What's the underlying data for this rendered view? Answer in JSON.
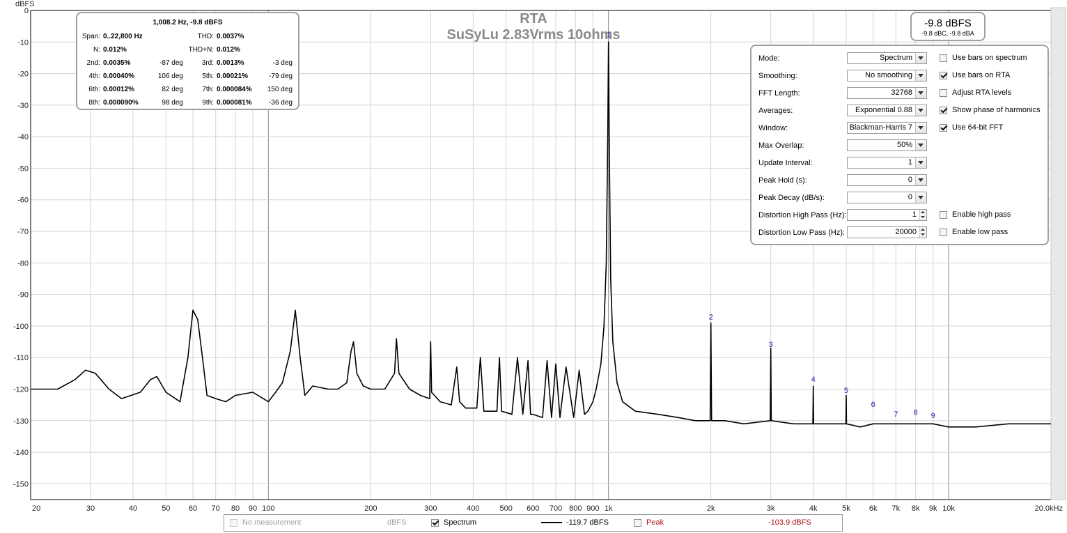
{
  "chart_data": {
    "type": "line",
    "title": "RTA",
    "subtitle": "SuSyLu 2.83Vrms 10ohms",
    "ylabel": "dBFS",
    "xlabel": "",
    "x_scale": "log",
    "xlim": [
      20,
      20000
    ],
    "ylim": [
      -155,
      0
    ],
    "y_ticks": [
      0,
      -10,
      -20,
      -30,
      -40,
      -50,
      -60,
      -70,
      -80,
      -90,
      -100,
      -110,
      -120,
      -130,
      -140,
      -150
    ],
    "x_tick_labels": [
      {
        "v": 20,
        "t": "20"
      },
      {
        "v": 30,
        "t": "30"
      },
      {
        "v": 40,
        "t": "40"
      },
      {
        "v": 50,
        "t": "50"
      },
      {
        "v": 60,
        "t": "60"
      },
      {
        "v": 70,
        "t": "70"
      },
      {
        "v": 80,
        "t": "80"
      },
      {
        "v": 90,
        "t": "90"
      },
      {
        "v": 100,
        "t": "100"
      },
      {
        "v": 200,
        "t": "200"
      },
      {
        "v": 300,
        "t": "300"
      },
      {
        "v": 400,
        "t": "400"
      },
      {
        "v": 500,
        "t": "500"
      },
      {
        "v": 600,
        "t": "600"
      },
      {
        "v": 700,
        "t": "700"
      },
      {
        "v": 800,
        "t": "800"
      },
      {
        "v": 900,
        "t": "900"
      },
      {
        "v": 1000,
        "t": "1k"
      },
      {
        "v": 2000,
        "t": "2k"
      },
      {
        "v": 3000,
        "t": "3k"
      },
      {
        "v": 4000,
        "t": "4k"
      },
      {
        "v": 5000,
        "t": "5k"
      },
      {
        "v": 6000,
        "t": "6k"
      },
      {
        "v": 7000,
        "t": "7k"
      },
      {
        "v": 8000,
        "t": "8k"
      },
      {
        "v": 9000,
        "t": "9k"
      },
      {
        "v": 10000,
        "t": "10k"
      },
      {
        "v": 20000,
        "t": "20.0kHz"
      }
    ],
    "grid": true,
    "series": [
      {
        "name": "Spectrum",
        "x": [
          20,
          24,
          27,
          29,
          31,
          34,
          37,
          42,
          45,
          47,
          50,
          55,
          58,
          60,
          62,
          64,
          66,
          70,
          75,
          80,
          90,
          100,
          105,
          110,
          116,
          120,
          124,
          128,
          135,
          150,
          160,
          170,
          175,
          178,
          182,
          190,
          200,
          220,
          235,
          238,
          242,
          260,
          280,
          298,
          300,
          302,
          320,
          345,
          358,
          365,
          380,
          410,
          420,
          430,
          470,
          478,
          485,
          520,
          540,
          560,
          580,
          590,
          600,
          640,
          660,
          680,
          700,
          720,
          750,
          790,
          820,
          850,
          870,
          900,
          920,
          950,
          970,
          985,
          995,
          1000,
          1005,
          1015,
          1030,
          1060,
          1100,
          1200,
          1400,
          1600,
          1800,
          1990,
          2000,
          2010,
          2200,
          2500,
          2990,
          3000,
          3010,
          3500,
          3990,
          4000,
          4010,
          4500,
          4990,
          5000,
          5010,
          5500,
          6000,
          6500,
          7000,
          8000,
          9000,
          10000,
          12000,
          15000,
          20000
        ],
        "y": [
          -120,
          -120,
          -117,
          -114,
          -115,
          -120,
          -123,
          -121,
          -117,
          -116,
          -121,
          -124,
          -110,
          -95,
          -98,
          -110,
          -122,
          -123,
          -124,
          -122,
          -121,
          -124,
          -121,
          -118,
          -108,
          -95,
          -110,
          -122,
          -119,
          -120,
          -120,
          -118,
          -108,
          -105,
          -115,
          -119,
          -120,
          -120,
          -115,
          -104,
          -115,
          -120,
          -122,
          -123,
          -105,
          -121,
          -124,
          -125,
          -113,
          -124,
          -126,
          -126,
          -110,
          -127,
          -127,
          -110,
          -127,
          -128,
          -110,
          -128,
          -111,
          -128,
          -128,
          -129,
          -111,
          -129,
          -112,
          -129,
          -113,
          -129,
          -114,
          -128,
          -127,
          -124,
          -120,
          -112,
          -100,
          -80,
          -40,
          -10,
          -40,
          -85,
          -105,
          -118,
          -124,
          -127,
          -128,
          -129,
          -130,
          -130,
          -99,
          -130,
          -130,
          -131,
          -130,
          -107,
          -130,
          -131,
          -131,
          -119,
          -131,
          -131,
          -131,
          -122,
          -131,
          -132,
          -131,
          -131,
          -131,
          -131,
          -131,
          -132,
          -132,
          -131,
          -131
        ]
      }
    ],
    "harmonic_markers": [
      {
        "n": "1",
        "x": 1000,
        "y": -9.8
      },
      {
        "n": "2",
        "x": 2000,
        "y": -99.3
      },
      {
        "n": "3",
        "x": 3000,
        "y": -108
      },
      {
        "n": "4",
        "x": 4000,
        "y": -119
      },
      {
        "n": "5",
        "x": 5000,
        "y": -122.5
      },
      {
        "n": "6",
        "x": 6000,
        "y": -127
      },
      {
        "n": "7",
        "x": 7000,
        "y": -130
      },
      {
        "n": "8",
        "x": 8000,
        "y": -129.5
      },
      {
        "n": "9",
        "x": 9000,
        "y": -130.5
      }
    ]
  },
  "distortion": {
    "header": "1,008.2 Hz, -9.8 dBFS",
    "span_label": "Span:",
    "span_value": "0..22,800 Hz",
    "thd_label": "THD:",
    "thd_value": "0.0037%",
    "n_label": "N:",
    "n_value": "0.012%",
    "thdn_label": "THD+N:",
    "thdn_value": "0.012%",
    "harmonics": [
      {
        "label": "2nd:",
        "value": "0.0035%",
        "phase": "-87 deg"
      },
      {
        "label": "3rd:",
        "value": "0.0013%",
        "phase": "-3 deg"
      },
      {
        "label": "4th:",
        "value": "0.00040%",
        "phase": "106 deg"
      },
      {
        "label": "5th:",
        "value": "0.00021%",
        "phase": "-79 deg"
      },
      {
        "label": "6th:",
        "value": "0.00012%",
        "phase": "82 deg"
      },
      {
        "label": "7th:",
        "value": "0.000084%",
        "phase": "150 deg"
      },
      {
        "label": "8th:",
        "value": "0.000090%",
        "phase": "98 deg"
      },
      {
        "label": "9th:",
        "value": "0.000081%",
        "phase": "-36 deg"
      }
    ]
  },
  "level": {
    "main": "-9.8 dBFS",
    "sub": "-9.8 dBC, -9.8 dBA"
  },
  "settings": {
    "rows": [
      {
        "label": "Mode:",
        "value": "Spectrum"
      },
      {
        "label": "Smoothing:",
        "value": "No  smoothing"
      },
      {
        "label": "FFT Length:",
        "value": "32768"
      },
      {
        "label": "Averages:",
        "value": "Exponential 0.88"
      },
      {
        "label": "Window:",
        "value": "Blackman-Harris 7"
      },
      {
        "label": "Max Overlap:",
        "value": "50%"
      },
      {
        "label": "Update Interval:",
        "value": "1"
      },
      {
        "label": "Peak Hold (s):",
        "value": "0"
      },
      {
        "label": "Peak Decay (dB/s):",
        "value": "0"
      },
      {
        "label": "Distortion High Pass (Hz):",
        "value": "1"
      },
      {
        "label": "Distortion Low Pass (Hz):",
        "value": "20000"
      }
    ],
    "checks": [
      {
        "label": "Use bars on spectrum",
        "checked": false
      },
      {
        "label": "Use bars on RTA",
        "checked": true
      },
      {
        "label": "Adjust RTA levels",
        "checked": false
      },
      {
        "label": "Show phase of harmonics",
        "checked": true
      },
      {
        "label": "Use 64-bit FFT",
        "checked": true
      },
      {
        "label": "Enable high pass",
        "checked": false
      },
      {
        "label": "Enable low pass",
        "checked": false
      }
    ]
  },
  "legend": {
    "no_measurement": "No measurement",
    "unit": "dBFS",
    "spectrum_label": "Spectrum",
    "spectrum_value": "-119.7 dBFS",
    "peak_label": "Peak",
    "peak_value": "-103.9 dBFS"
  }
}
